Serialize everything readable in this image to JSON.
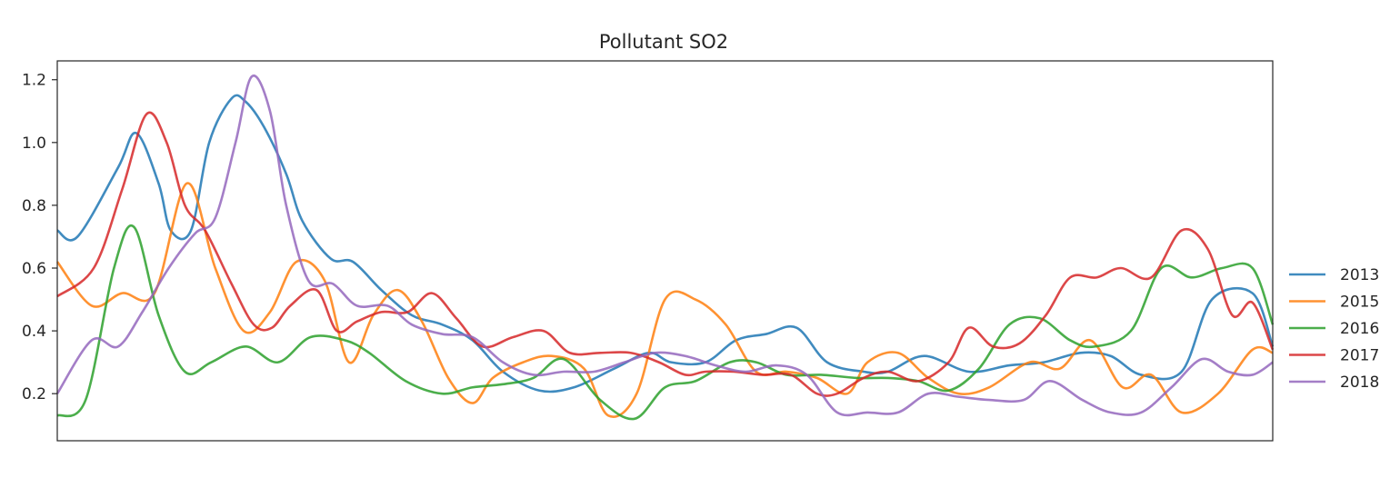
{
  "chart_data": {
    "type": "line",
    "title": "Pollutant SO2",
    "xlabel": "",
    "ylabel": "",
    "x_ticks_shown": false,
    "xlim": [
      0,
      60
    ],
    "ylim": [
      0.05,
      1.26
    ],
    "yticks": [
      0.2,
      0.4,
      0.6,
      0.8,
      1.0,
      1.2
    ],
    "ytick_labels": [
      "0.2",
      "0.4",
      "0.6",
      "0.8",
      "1.0",
      "1.2"
    ],
    "grid": false,
    "legend_position": "center-right-outside",
    "series": [
      {
        "name": "2013",
        "color": "#1f77b4",
        "x": [
          0,
          1,
          3,
          3.9,
          5,
          5.6,
          6.6,
          7.5,
          8.6,
          9.3,
          10.2,
          11.3,
          12.1,
          13.5,
          14.6,
          16,
          17.5,
          19,
          20.5,
          22,
          23.8,
          25.5,
          27.5,
          29.2,
          30.3,
          32,
          33.5,
          35,
          36.5,
          38,
          39.8,
          41,
          42.8,
          45,
          47,
          48.7,
          50.5,
          52,
          53.5,
          55.5,
          57,
          59,
          60
        ],
        "y": [
          0.72,
          0.7,
          0.92,
          1.03,
          0.87,
          0.72,
          0.72,
          1.0,
          1.14,
          1.13,
          1.05,
          0.9,
          0.75,
          0.63,
          0.62,
          0.53,
          0.45,
          0.42,
          0.37,
          0.27,
          0.21,
          0.22,
          0.28,
          0.33,
          0.3,
          0.3,
          0.37,
          0.39,
          0.41,
          0.3,
          0.27,
          0.27,
          0.32,
          0.27,
          0.29,
          0.3,
          0.33,
          0.32,
          0.26,
          0.27,
          0.5,
          0.52,
          0.35
        ]
      },
      {
        "name": "2015",
        "color": "#ff7f0e",
        "x": [
          0,
          1.7,
          3.2,
          4.8,
          6.4,
          7.8,
          9.2,
          10.5,
          11.8,
          13.2,
          14.4,
          15.6,
          16.8,
          18,
          19.3,
          20.5,
          21.5,
          23,
          24.4,
          26,
          27.2,
          28.6,
          30,
          31.5,
          33,
          34.5,
          36,
          37.5,
          39,
          40,
          41.5,
          43,
          44.5,
          46,
          48,
          49.5,
          51,
          52.6,
          54,
          55.5,
          57.3,
          59,
          60
        ],
        "y": [
          0.62,
          0.48,
          0.52,
          0.52,
          0.87,
          0.6,
          0.4,
          0.46,
          0.62,
          0.56,
          0.3,
          0.45,
          0.53,
          0.43,
          0.25,
          0.17,
          0.25,
          0.3,
          0.32,
          0.28,
          0.13,
          0.2,
          0.5,
          0.5,
          0.42,
          0.27,
          0.27,
          0.25,
          0.2,
          0.3,
          0.33,
          0.25,
          0.2,
          0.22,
          0.3,
          0.28,
          0.37,
          0.22,
          0.26,
          0.14,
          0.2,
          0.34,
          0.33
        ]
      },
      {
        "name": "2016",
        "color": "#2ca02c",
        "x": [
          0,
          1.4,
          2.8,
          3.8,
          5,
          6.3,
          7.6,
          9.3,
          10.9,
          12.5,
          14.2,
          15.4,
          17.2,
          19,
          20.5,
          22,
          23.5,
          25,
          26.8,
          28.5,
          30,
          31.5,
          33.2,
          34.5,
          36,
          37.7,
          39.5,
          41,
          42.5,
          44,
          45.5,
          47,
          48.5,
          50,
          51.2,
          53,
          54.5,
          56,
          57.5,
          59,
          60
        ],
        "y": [
          0.13,
          0.18,
          0.6,
          0.73,
          0.45,
          0.27,
          0.3,
          0.35,
          0.3,
          0.38,
          0.37,
          0.33,
          0.24,
          0.2,
          0.22,
          0.23,
          0.25,
          0.31,
          0.18,
          0.12,
          0.22,
          0.24,
          0.3,
          0.3,
          0.26,
          0.26,
          0.25,
          0.25,
          0.24,
          0.21,
          0.28,
          0.42,
          0.44,
          0.37,
          0.35,
          0.4,
          0.6,
          0.57,
          0.6,
          0.6,
          0.42
        ]
      },
      {
        "name": "2017",
        "color": "#d62728",
        "x": [
          0,
          1.8,
          3.2,
          4.4,
          5.4,
          6.3,
          7.3,
          8.6,
          9.7,
          10.6,
          11.5,
          12.8,
          13.8,
          14.8,
          16,
          17.3,
          18.5,
          19.7,
          21,
          22.5,
          24,
          25.3,
          26.8,
          28.3,
          29.7,
          31,
          32,
          33.4,
          34.8,
          36.2,
          37.5,
          38.5,
          39.8,
          41,
          42.5,
          44,
          45,
          46.2,
          47.5,
          48.8,
          50,
          51.3,
          52.5,
          54,
          55.5,
          56.8,
          58,
          59,
          60
        ],
        "y": [
          0.51,
          0.6,
          0.85,
          1.09,
          1.0,
          0.8,
          0.72,
          0.55,
          0.42,
          0.41,
          0.48,
          0.53,
          0.4,
          0.43,
          0.46,
          0.46,
          0.52,
          0.44,
          0.35,
          0.38,
          0.4,
          0.33,
          0.33,
          0.33,
          0.3,
          0.26,
          0.27,
          0.27,
          0.26,
          0.26,
          0.2,
          0.2,
          0.25,
          0.27,
          0.24,
          0.3,
          0.41,
          0.35,
          0.36,
          0.45,
          0.57,
          0.57,
          0.6,
          0.57,
          0.72,
          0.66,
          0.45,
          0.49,
          0.34
        ]
      },
      {
        "name": "2018",
        "color": "#9467bd",
        "x": [
          0,
          1.7,
          3,
          4.2,
          5.5,
          6.8,
          7.8,
          8.8,
          9.6,
          10.5,
          11.3,
          12.4,
          13.6,
          14.8,
          16.3,
          17.5,
          19,
          20.5,
          22,
          23.5,
          25,
          26.5,
          28,
          29.5,
          31,
          32.5,
          34,
          35.5,
          37,
          38.5,
          40,
          41.5,
          43,
          44.5,
          46,
          47.7,
          49,
          50.6,
          52,
          53.5,
          55,
          56.5,
          57.8,
          59,
          60
        ],
        "y": [
          0.2,
          0.37,
          0.35,
          0.46,
          0.6,
          0.71,
          0.76,
          1.0,
          1.21,
          1.1,
          0.8,
          0.56,
          0.55,
          0.48,
          0.48,
          0.42,
          0.39,
          0.38,
          0.3,
          0.26,
          0.27,
          0.27,
          0.3,
          0.33,
          0.32,
          0.29,
          0.27,
          0.29,
          0.26,
          0.14,
          0.14,
          0.14,
          0.2,
          0.19,
          0.18,
          0.18,
          0.24,
          0.18,
          0.14,
          0.14,
          0.22,
          0.31,
          0.27,
          0.26,
          0.3
        ]
      }
    ]
  }
}
